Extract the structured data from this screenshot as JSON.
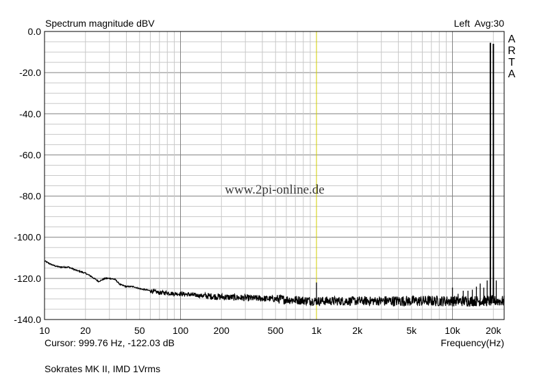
{
  "chart_data": {
    "type": "line",
    "title": "Spectrum magnitude dBV",
    "channel_label": "Left",
    "averaging_label": "Avg:30",
    "brand_letters": [
      "A",
      "R",
      "T",
      "A"
    ],
    "watermark": "www.2pi-online.de",
    "xlabel": "Frequency(Hz)",
    "x_scale": "log",
    "xlim": [
      10,
      24000
    ],
    "ylim": [
      -140,
      0
    ],
    "x_ticks": [
      {
        "value": 10,
        "label": "10"
      },
      {
        "value": 20,
        "label": "20"
      },
      {
        "value": 50,
        "label": "50"
      },
      {
        "value": 100,
        "label": "100"
      },
      {
        "value": 200,
        "label": "200"
      },
      {
        "value": 500,
        "label": "500"
      },
      {
        "value": 1000,
        "label": "1k"
      },
      {
        "value": 2000,
        "label": "2k"
      },
      {
        "value": 5000,
        "label": "5k"
      },
      {
        "value": 10000,
        "label": "10k"
      },
      {
        "value": 20000,
        "label": "20k"
      }
    ],
    "y_ticks": [
      {
        "value": 0,
        "label": "0.0"
      },
      {
        "value": -20,
        "label": "-20.0"
      },
      {
        "value": -40,
        "label": "-40.0"
      },
      {
        "value": -60,
        "label": "-60.0"
      },
      {
        "value": -80,
        "label": "-80.0"
      },
      {
        "value": -100,
        "label": "-100.0"
      },
      {
        "value": -120,
        "label": "-120.0"
      },
      {
        "value": -140,
        "label": "-140.0"
      }
    ],
    "grid": true,
    "cursor_x": 999.76,
    "noise_floor": {
      "x": [
        10,
        11,
        12,
        13,
        15,
        17,
        20,
        22,
        25,
        28,
        30,
        33,
        36,
        40,
        45,
        50,
        55,
        60,
        70,
        80,
        90,
        100,
        120,
        150,
        200,
        300,
        500,
        700,
        1000,
        1500,
        2000,
        3000,
        5000,
        7000,
        10000,
        15000,
        20000,
        24000
      ],
      "y": [
        -111.5,
        -113,
        -114,
        -114.5,
        -114.5,
        -116,
        -117.5,
        -119,
        -121.5,
        -120,
        -120,
        -120.5,
        -123,
        -124,
        -124,
        -125,
        -125.5,
        -126,
        -127,
        -127,
        -127.5,
        -127.5,
        -128,
        -128.5,
        -129,
        -129.5,
        -130,
        -130.5,
        -131,
        -131,
        -131,
        -131,
        -131,
        -131,
        -131,
        -131,
        -131,
        -131
      ]
    },
    "peaks": [
      {
        "x": 1000,
        "y": -122
      },
      {
        "x": 10000,
        "y": -124.5
      },
      {
        "x": 11000,
        "y": -127.5
      },
      {
        "x": 12000,
        "y": -126
      },
      {
        "x": 13000,
        "y": -126
      },
      {
        "x": 14000,
        "y": -125.5
      },
      {
        "x": 15000,
        "y": -124
      },
      {
        "x": 16000,
        "y": -122.5
      },
      {
        "x": 17000,
        "y": -124.5
      },
      {
        "x": 18000,
        "y": -121
      },
      {
        "x": 19000,
        "y": -5.5
      },
      {
        "x": 20000,
        "y": -6
      },
      {
        "x": 21000,
        "y": -121
      }
    ]
  },
  "cursor_readout": "Cursor: 999.76 Hz, -122.03 dB",
  "caption": "Sokrates MK II, IMD 1Vrms",
  "colors": {
    "trace": "#000000",
    "cursor": "#d4d000",
    "major_grid": "#808080",
    "minor_grid": "#c8c8c8"
  }
}
